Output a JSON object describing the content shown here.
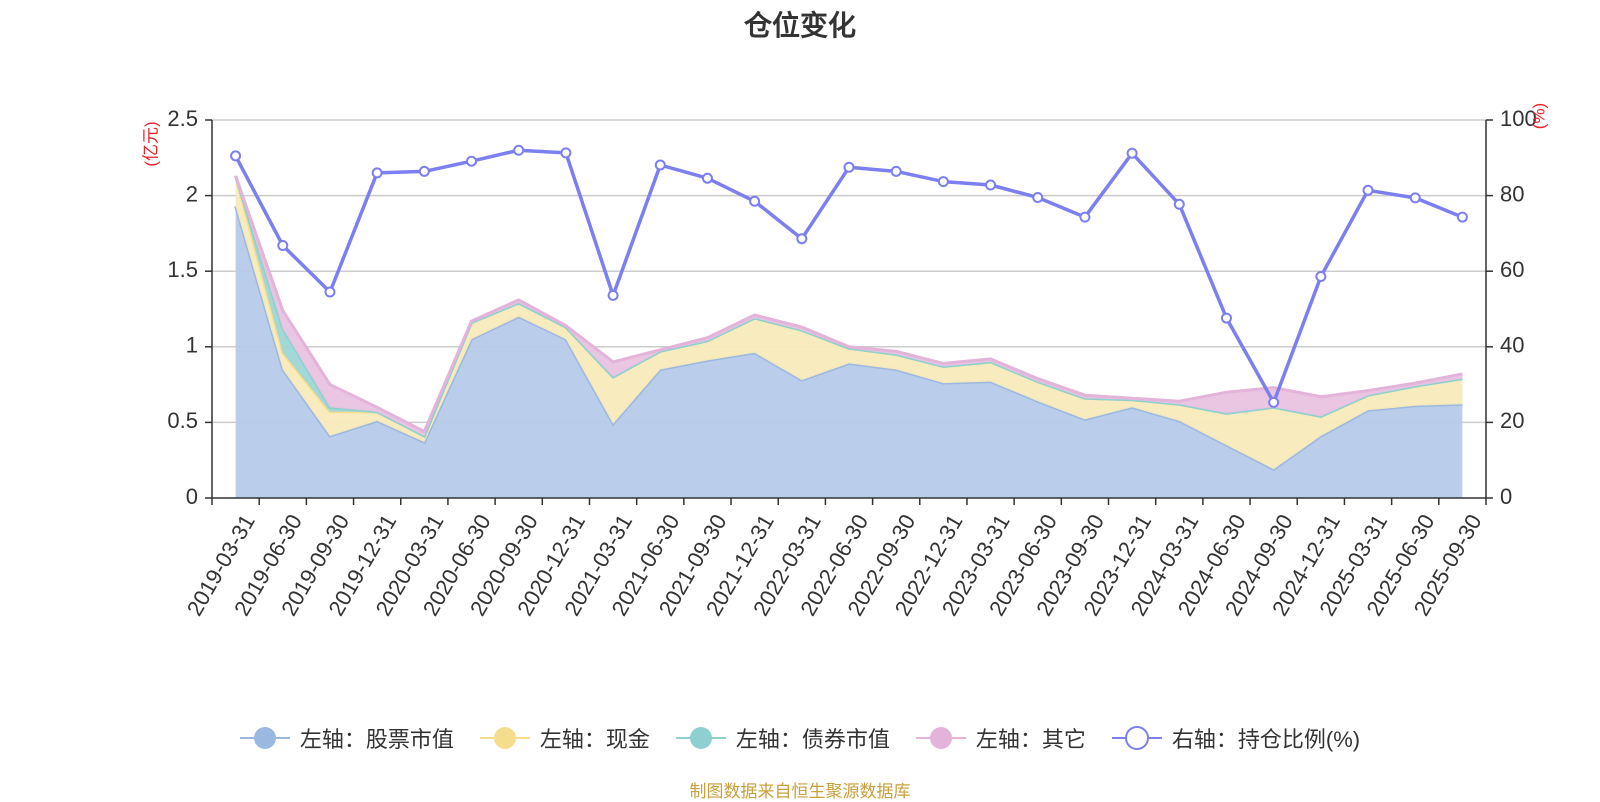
{
  "chart_data": {
    "type": "area",
    "title": "仓位变化",
    "left_axis_label": "(亿元)",
    "right_axis_label": "(%)",
    "left_ylim": [
      0,
      2.5
    ],
    "left_ticks": [
      "0",
      "0.5",
      "1",
      "1.5",
      "2",
      "2.5"
    ],
    "right_ylim": [
      0,
      100
    ],
    "right_ticks": [
      "0",
      "20",
      "40",
      "60",
      "80",
      "100"
    ],
    "grid": true,
    "legend_position": "bottom",
    "categories": [
      "2019-03-31",
      "2019-06-30",
      "2019-09-30",
      "2019-12-31",
      "2020-03-31",
      "2020-06-30",
      "2020-09-30",
      "2020-12-31",
      "2021-03-31",
      "2021-06-30",
      "2021-09-30",
      "2021-12-31",
      "2022-03-31",
      "2022-06-30",
      "2022-09-30",
      "2022-12-31",
      "2023-03-31",
      "2023-06-30",
      "2023-09-30",
      "2023-12-31",
      "2024-03-31",
      "2024-06-30",
      "2024-09-30",
      "2024-12-31",
      "2025-03-31",
      "2025-06-30",
      "2025-09-30"
    ],
    "stacked_series": [
      {
        "name": "左轴：股票市值",
        "axis": "left",
        "color": "#9bb8e0",
        "fill": "#b6cbea",
        "values": [
          1.93,
          0.85,
          0.41,
          0.51,
          0.37,
          1.05,
          1.2,
          1.05,
          0.49,
          0.85,
          0.91,
          0.96,
          0.78,
          0.89,
          0.85,
          0.76,
          0.77,
          0.64,
          0.52,
          0.6,
          0.51,
          0.35,
          0.19,
          0.41,
          0.58,
          0.61,
          0.62
        ]
      },
      {
        "name": "左轴：现金",
        "axis": "left",
        "color": "#f5dd8e",
        "fill": "#f8eabb",
        "values": [
          0.2,
          0.11,
          0.16,
          0.06,
          0.04,
          0.11,
          0.09,
          0.08,
          0.31,
          0.12,
          0.13,
          0.23,
          0.33,
          0.1,
          0.1,
          0.11,
          0.13,
          0.13,
          0.14,
          0.05,
          0.11,
          0.21,
          0.41,
          0.13,
          0.1,
          0.13,
          0.17
        ]
      },
      {
        "name": "左轴：债券市值",
        "axis": "left",
        "color": "#8ed0d0",
        "fill": "#9ed6d6",
        "values": [
          0,
          0.16,
          0.03,
          0,
          0,
          0,
          0,
          0,
          0,
          0,
          0,
          0,
          0,
          0,
          0,
          0,
          0,
          0,
          0,
          0,
          0,
          0,
          0,
          0,
          0,
          0,
          0
        ]
      },
      {
        "name": "左轴：其它",
        "axis": "left",
        "color": "#e4b3da",
        "fill": "#e9c3e1",
        "values": [
          0,
          0.12,
          0.15,
          0.03,
          0.03,
          0.01,
          0.02,
          0.01,
          0.1,
          0.01,
          0.02,
          0.02,
          0.02,
          0.01,
          0.02,
          0.02,
          0.02,
          0.02,
          0.02,
          0.01,
          0.02,
          0.14,
          0.13,
          0.13,
          0.03,
          0.02,
          0.03
        ]
      }
    ],
    "line_series": {
      "name": "右轴：持仓比例(%)",
      "axis": "right",
      "color": "#7b7ff0",
      "values": [
        90.5,
        66.8,
        54.5,
        86.0,
        86.4,
        89.1,
        92.0,
        91.3,
        53.6,
        88.1,
        84.6,
        78.5,
        68.6,
        87.5,
        86.4,
        83.7,
        82.8,
        79.5,
        74.3,
        91.2,
        77.7,
        47.6,
        25.3,
        58.6,
        81.4,
        79.4,
        74.3
      ]
    },
    "source_note": "制图数据来自恒生聚源数据库"
  }
}
